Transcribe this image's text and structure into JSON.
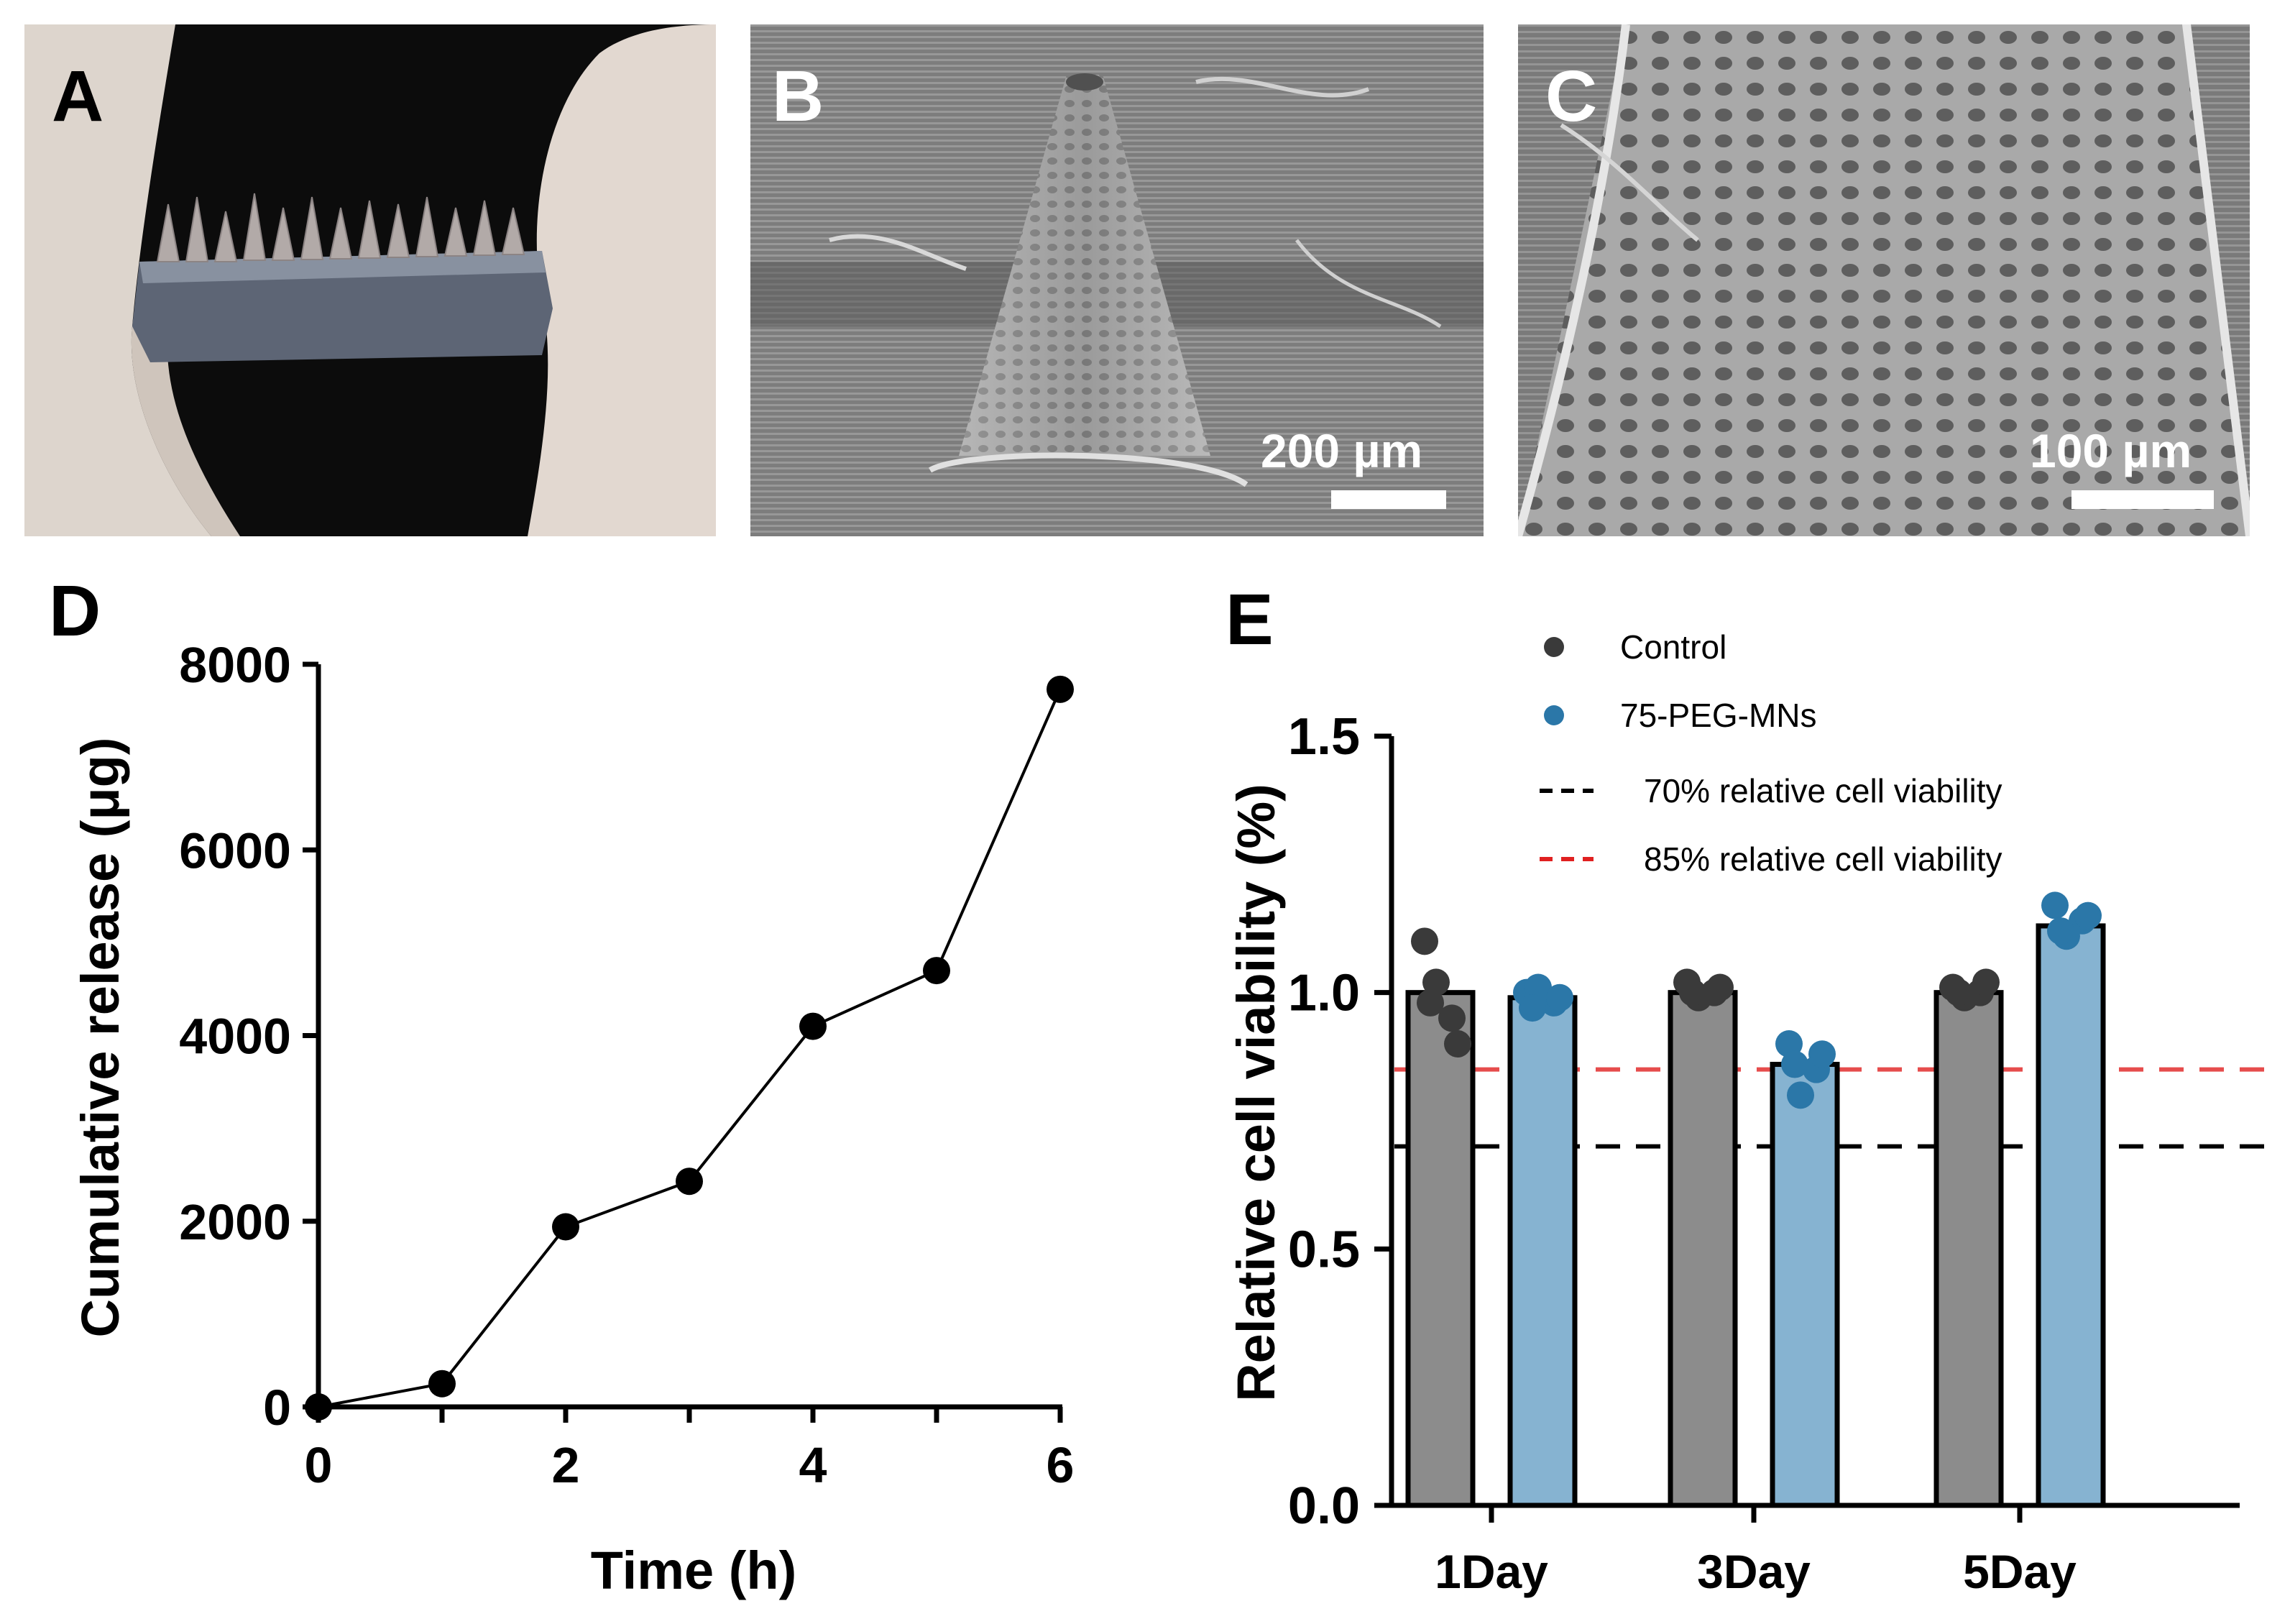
{
  "panels": {
    "A": {
      "letter": "A"
    },
    "B": {
      "letter": "B",
      "scalebar": "200 µm"
    },
    "C": {
      "letter": "C",
      "scalebar": "100 µm"
    },
    "D": {
      "letter": "D"
    },
    "E": {
      "letter": "E"
    }
  },
  "chart_data": [
    {
      "panel": "D",
      "type": "line",
      "x": [
        0,
        1,
        2,
        3,
        4,
        5,
        6
      ],
      "y": [
        0,
        250,
        1940,
        2430,
        4100,
        4700,
        7730
      ],
      "xlabel": "Time (h)",
      "ylabel": "Cumulative release (μg)",
      "xlim": [
        0,
        6
      ],
      "ylim": [
        0,
        8000
      ],
      "xticks": [
        "0",
        "2",
        "4",
        "6"
      ],
      "yticks": [
        "0",
        "2000",
        "4000",
        "6000",
        "8000"
      ],
      "color": "#000000"
    },
    {
      "panel": "E",
      "type": "bar",
      "categories": [
        "1Day",
        "3Day",
        "5Day"
      ],
      "series": [
        {
          "name": "Control",
          "values": [
            1.0,
            1.0,
            1.0
          ],
          "color": "#8c8c8c",
          "marker_color": "#3a3a3a",
          "points": [
            [
              1.1,
              0.95,
              1.02,
              0.9,
              0.98
            ],
            [
              1.02,
              1.0,
              0.99,
              1.01,
              1.0
            ],
            [
              1.01,
              1.0,
              0.99,
              1.02,
              1.0
            ]
          ]
        },
        {
          "name": "75-PEG-MNs",
          "values": [
            0.99,
            0.86,
            1.13
          ],
          "color": "#86b3d1",
          "marker_color": "#2b77a8",
          "points": [
            [
              1.0,
              0.98,
              1.01,
              0.99,
              0.97
            ],
            [
              0.9,
              0.85,
              0.8,
              0.88,
              0.86
            ],
            [
              1.17,
              1.14,
              1.11,
              1.15,
              1.12
            ]
          ]
        }
      ],
      "reference_lines": [
        {
          "name": "70% relative cell viability",
          "y": 0.7,
          "color": "#000000"
        },
        {
          "name": "85% relative cell viability",
          "y": 0.85,
          "color": "#e02020"
        }
      ],
      "ylabel": "Relative cell viability (%)",
      "ylim": [
        0,
        1.5
      ],
      "yticks": [
        "0.0",
        "0.5",
        "1.0",
        "1.5"
      ],
      "legend_position": "top"
    }
  ]
}
